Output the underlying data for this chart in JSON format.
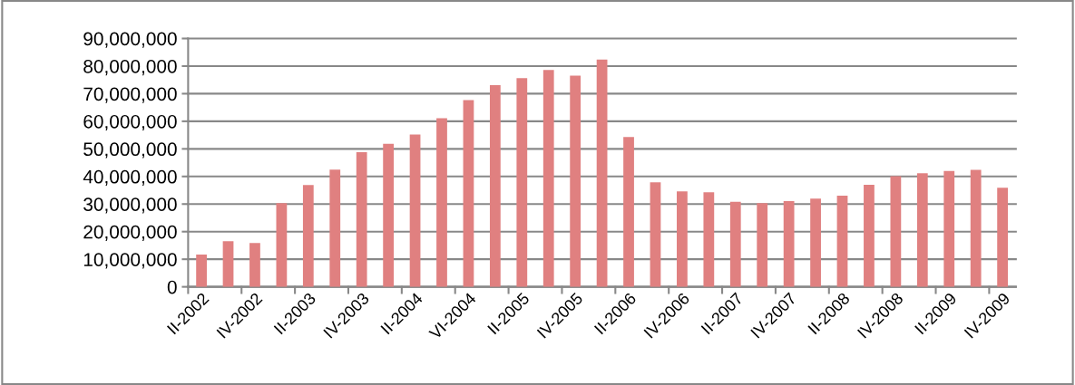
{
  "chart_data": {
    "type": "bar",
    "categories": [
      "II-2002",
      null,
      "IV-2002",
      null,
      "II-2003",
      null,
      "IV-2003",
      null,
      "II-2004",
      null,
      "VI-2004",
      null,
      "II-2005",
      null,
      "IV-2005",
      null,
      "II-2006",
      null,
      "IV-2006",
      null,
      "II-2007",
      null,
      "IV-2007",
      null,
      "II-2008",
      null,
      "IV-2008",
      null,
      "II-2009",
      null,
      "IV-2009"
    ],
    "values": [
      11700000,
      16500000,
      15900000,
      30300000,
      36900000,
      42500000,
      48800000,
      51800000,
      55200000,
      61100000,
      67700000,
      73100000,
      75600000,
      78600000,
      76500000,
      82400000,
      54300000,
      37900000,
      34600000,
      34300000,
      30800000,
      30300000,
      31100000,
      32000000,
      33000000,
      37000000,
      40100000,
      41200000,
      42000000,
      42400000,
      35900000
    ],
    "color": "#e08080",
    "ylim": [
      0,
      90000000
    ],
    "yticks": [
      {
        "value": 0,
        "label": "0"
      },
      {
        "value": 10000000,
        "label": "10,000,000"
      },
      {
        "value": 20000000,
        "label": "20,000,000"
      },
      {
        "value": 30000000,
        "label": "30,000,000"
      },
      {
        "value": 40000000,
        "label": "40,000,000"
      },
      {
        "value": 50000000,
        "label": "50,000,000"
      },
      {
        "value": 60000000,
        "label": "60,000,000"
      },
      {
        "value": 70000000,
        "label": "70,000,000"
      },
      {
        "value": 80000000,
        "label": "80,000,000"
      },
      {
        "value": 90000000,
        "label": "90,000,000"
      }
    ],
    "grid": "y"
  }
}
